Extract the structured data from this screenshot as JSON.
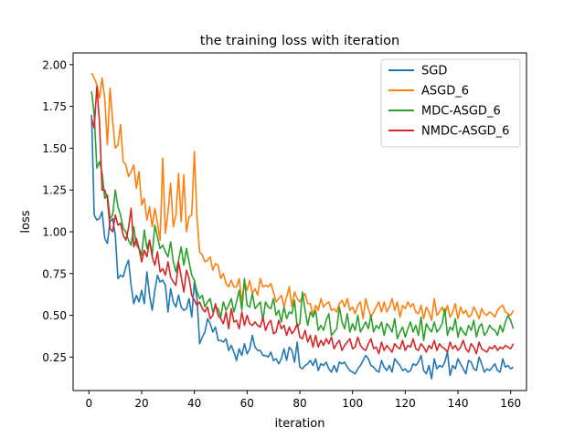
{
  "chart_data": {
    "type": "line",
    "title": "the training loss with iteration",
    "xlabel": "iteration",
    "ylabel": "loss",
    "xlim": [
      -6,
      166
    ],
    "ylim": [
      0.05,
      2.07
    ],
    "xticks": [
      "0",
      "20",
      "40",
      "60",
      "80",
      "100",
      "120",
      "140",
      "160"
    ],
    "yticks": [
      "0.25",
      "0.50",
      "0.75",
      "1.00",
      "1.25",
      "1.50",
      "1.75",
      "2.00"
    ],
    "grid": false,
    "legend_position": "top-right",
    "x_start": 1,
    "series": [
      {
        "name": "SGD",
        "color": "#1f77b4",
        "values": [
          1.7,
          1.1,
          1.07,
          1.08,
          1.12,
          0.96,
          0.93,
          1.06,
          1.08,
          0.98,
          0.72,
          0.74,
          0.73,
          0.79,
          0.83,
          0.68,
          0.57,
          0.62,
          0.58,
          0.65,
          0.57,
          0.76,
          0.62,
          0.53,
          0.65,
          0.74,
          0.7,
          0.71,
          0.68,
          0.52,
          0.66,
          0.58,
          0.55,
          0.62,
          0.55,
          0.53,
          0.54,
          0.6,
          0.49,
          0.7,
          0.6,
          0.33,
          0.37,
          0.4,
          0.48,
          0.45,
          0.4,
          0.43,
          0.35,
          0.35,
          0.34,
          0.36,
          0.29,
          0.32,
          0.28,
          0.23,
          0.3,
          0.26,
          0.33,
          0.27,
          0.3,
          0.38,
          0.31,
          0.29,
          0.29,
          0.26,
          0.26,
          0.25,
          0.28,
          0.23,
          0.24,
          0.21,
          0.24,
          0.3,
          0.23,
          0.31,
          0.29,
          0.22,
          0.34,
          0.19,
          0.18,
          0.2,
          0.21,
          0.23,
          0.2,
          0.24,
          0.17,
          0.21,
          0.2,
          0.22,
          0.18,
          0.16,
          0.2,
          0.16,
          0.22,
          0.21,
          0.22,
          0.19,
          0.17,
          0.16,
          0.15,
          0.18,
          0.2,
          0.23,
          0.26,
          0.24,
          0.2,
          0.19,
          0.17,
          0.16,
          0.23,
          0.19,
          0.17,
          0.2,
          0.16,
          0.24,
          0.22,
          0.2,
          0.17,
          0.18,
          0.16,
          0.17,
          0.21,
          0.2,
          0.22,
          0.26,
          0.17,
          0.15,
          0.2,
          0.12,
          0.24,
          0.18,
          0.2,
          0.19,
          0.22,
          0.28,
          0.14,
          0.2,
          0.18,
          0.24,
          0.21,
          0.18,
          0.15,
          0.23,
          0.22,
          0.18,
          0.17,
          0.25,
          0.21,
          0.16,
          0.18,
          0.17,
          0.19,
          0.21,
          0.17,
          0.16,
          0.24,
          0.19,
          0.2,
          0.18,
          0.19
        ]
      },
      {
        "name": "ASGD_6",
        "color": "#ff7f0e",
        "values": [
          1.95,
          1.92,
          1.88,
          1.8,
          1.92,
          1.8,
          1.52,
          1.86,
          1.66,
          1.5,
          1.52,
          1.64,
          1.42,
          1.4,
          1.33,
          1.36,
          1.4,
          1.26,
          1.36,
          1.16,
          1.2,
          1.07,
          1.15,
          1.03,
          1.14,
          1.05,
          0.95,
          1.44,
          0.99,
          1.12,
          1.29,
          1.03,
          1.1,
          1.35,
          1.06,
          1.34,
          1.0,
          1.09,
          1.1,
          1.48,
          1.08,
          0.88,
          0.86,
          0.82,
          0.83,
          0.85,
          0.77,
          0.81,
          0.8,
          0.72,
          0.75,
          0.69,
          0.67,
          0.71,
          0.67,
          0.67,
          0.72,
          0.58,
          0.7,
          0.65,
          0.71,
          0.63,
          0.66,
          0.62,
          0.72,
          0.67,
          0.68,
          0.67,
          0.69,
          0.64,
          0.58,
          0.6,
          0.62,
          0.55,
          0.61,
          0.67,
          0.55,
          0.64,
          0.6,
          0.58,
          0.61,
          0.63,
          0.57,
          0.57,
          0.5,
          0.56,
          0.53,
          0.6,
          0.55,
          0.57,
          0.58,
          0.53,
          0.54,
          0.52,
          0.57,
          0.59,
          0.55,
          0.6,
          0.53,
          0.55,
          0.51,
          0.56,
          0.58,
          0.48,
          0.6,
          0.54,
          0.49,
          0.52,
          0.55,
          0.58,
          0.52,
          0.58,
          0.52,
          0.55,
          0.6,
          0.53,
          0.58,
          0.49,
          0.56,
          0.54,
          0.58,
          0.55,
          0.57,
          0.52,
          0.51,
          0.56,
          0.48,
          0.55,
          0.52,
          0.47,
          0.6,
          0.5,
          0.52,
          0.55,
          0.5,
          0.56,
          0.49,
          0.52,
          0.57,
          0.48,
          0.55,
          0.51,
          0.53,
          0.49,
          0.5,
          0.55,
          0.52,
          0.48,
          0.54,
          0.51,
          0.5,
          0.52,
          0.51,
          0.49,
          0.53,
          0.55,
          0.56,
          0.52,
          0.51,
          0.5,
          0.53
        ]
      },
      {
        "name": "MDC-ASGD_6",
        "color": "#2ca02c",
        "values": [
          1.84,
          1.7,
          1.38,
          1.42,
          1.35,
          1.2,
          1.22,
          1.08,
          1.1,
          1.25,
          1.15,
          1.1,
          1.02,
          1.0,
          0.95,
          0.92,
          1.03,
          0.92,
          0.9,
          0.86,
          1.01,
          0.9,
          0.95,
          0.86,
          1.04,
          0.97,
          0.9,
          0.92,
          0.88,
          0.85,
          0.94,
          0.82,
          0.76,
          0.83,
          0.91,
          0.8,
          0.9,
          0.82,
          0.74,
          0.71,
          0.64,
          0.6,
          0.62,
          0.55,
          0.58,
          0.6,
          0.52,
          0.55,
          0.54,
          0.49,
          0.58,
          0.53,
          0.56,
          0.6,
          0.52,
          0.58,
          0.65,
          0.53,
          0.72,
          0.56,
          0.55,
          0.63,
          0.54,
          0.56,
          0.58,
          0.47,
          0.58,
          0.55,
          0.54,
          0.6,
          0.5,
          0.53,
          0.46,
          0.55,
          0.48,
          0.52,
          0.51,
          0.59,
          0.43,
          0.45,
          0.64,
          0.53,
          0.44,
          0.52,
          0.49,
          0.53,
          0.41,
          0.44,
          0.41,
          0.47,
          0.51,
          0.38,
          0.4,
          0.42,
          0.55,
          0.46,
          0.42,
          0.51,
          0.4,
          0.45,
          0.41,
          0.5,
          0.4,
          0.43,
          0.46,
          0.42,
          0.5,
          0.4,
          0.44,
          0.42,
          0.46,
          0.38,
          0.45,
          0.43,
          0.4,
          0.48,
          0.36,
          0.4,
          0.43,
          0.37,
          0.42,
          0.46,
          0.4,
          0.44,
          0.38,
          0.49,
          0.35,
          0.45,
          0.42,
          0.4,
          0.46,
          0.4,
          0.42,
          0.45,
          0.54,
          0.38,
          0.43,
          0.41,
          0.48,
          0.37,
          0.43,
          0.4,
          0.38,
          0.44,
          0.41,
          0.47,
          0.37,
          0.43,
          0.45,
          0.38,
          0.4,
          0.44,
          0.42,
          0.41,
          0.38,
          0.44,
          0.4,
          0.46,
          0.5,
          0.47,
          0.42
        ]
      },
      {
        "name": "NMDC-ASGD_6",
        "color": "#d62728",
        "values": [
          1.68,
          1.62,
          1.87,
          1.66,
          1.25,
          1.25,
          1.2,
          1.02,
          1.0,
          1.1,
          1.04,
          1.05,
          0.98,
          0.95,
          1.02,
          1.14,
          0.91,
          0.96,
          0.9,
          0.82,
          0.89,
          0.85,
          0.95,
          0.85,
          0.8,
          0.88,
          0.76,
          0.78,
          0.74,
          0.82,
          0.73,
          0.7,
          0.68,
          0.82,
          0.73,
          0.64,
          0.77,
          0.72,
          0.62,
          0.59,
          0.56,
          0.58,
          0.54,
          0.52,
          0.55,
          0.48,
          0.5,
          0.57,
          0.5,
          0.48,
          0.45,
          0.52,
          0.42,
          0.54,
          0.46,
          0.47,
          0.42,
          0.52,
          0.44,
          0.5,
          0.45,
          0.44,
          0.46,
          0.44,
          0.43,
          0.49,
          0.41,
          0.45,
          0.47,
          0.39,
          0.4,
          0.47,
          0.42,
          0.44,
          0.38,
          0.43,
          0.39,
          0.41,
          0.45,
          0.37,
          0.36,
          0.41,
          0.34,
          0.38,
          0.31,
          0.38,
          0.31,
          0.35,
          0.32,
          0.36,
          0.33,
          0.37,
          0.3,
          0.33,
          0.35,
          0.29,
          0.32,
          0.34,
          0.36,
          0.3,
          0.31,
          0.37,
          0.32,
          0.3,
          0.29,
          0.33,
          0.36,
          0.3,
          0.31,
          0.27,
          0.34,
          0.29,
          0.32,
          0.3,
          0.28,
          0.33,
          0.31,
          0.3,
          0.35,
          0.29,
          0.32,
          0.31,
          0.36,
          0.3,
          0.29,
          0.33,
          0.31,
          0.28,
          0.32,
          0.3,
          0.35,
          0.29,
          0.33,
          0.31,
          0.3,
          0.28,
          0.34,
          0.3,
          0.32,
          0.29,
          0.31,
          0.35,
          0.3,
          0.28,
          0.33,
          0.31,
          0.27,
          0.34,
          0.3,
          0.29,
          0.28,
          0.31,
          0.3,
          0.32,
          0.29,
          0.31,
          0.3,
          0.32,
          0.31,
          0.3,
          0.33
        ]
      }
    ]
  }
}
